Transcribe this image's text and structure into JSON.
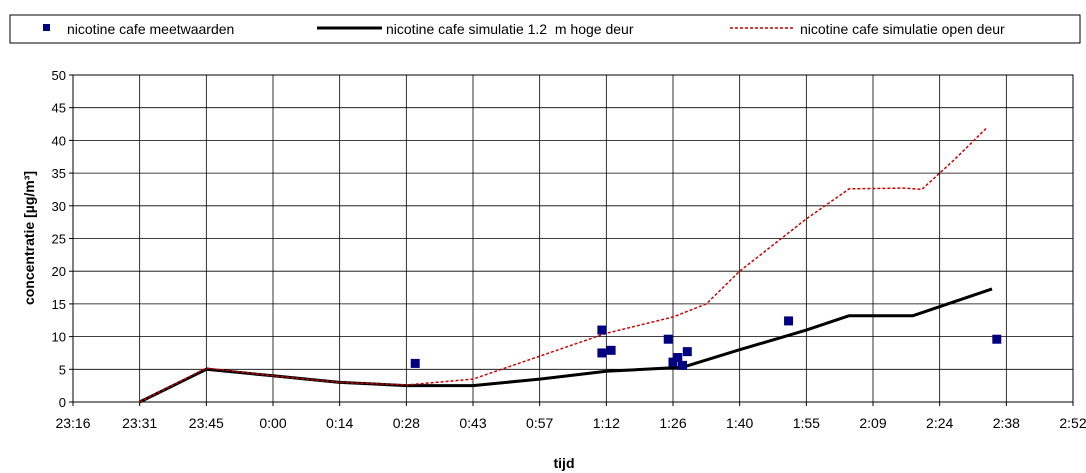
{
  "chart_data": {
    "type": "line",
    "xlabel": "tijd",
    "ylabel": "concentratie [µg/m³]",
    "ylim": [
      0,
      50
    ],
    "yticks": [
      0,
      5,
      10,
      15,
      20,
      25,
      30,
      35,
      40,
      45,
      50
    ],
    "x_tick_labels": [
      "23:16",
      "23:31",
      "23:45",
      "0:00",
      "0:14",
      "0:28",
      "0:43",
      "0:57",
      "1:12",
      "1:26",
      "1:40",
      "1:55",
      "2:09",
      "2:24",
      "2:38",
      "2:52"
    ],
    "grid": true,
    "legend_position": "top",
    "series": [
      {
        "name": "nicotine cafe meetwaarden",
        "kind": "scatter",
        "color": "#000080",
        "x": [
          "0:30",
          "1:11",
          "1:11",
          "1:13",
          "1:25",
          "1:26",
          "1:27",
          "1:28",
          "1:29",
          "1:51",
          "2:36"
        ],
        "y": [
          5.9,
          7.5,
          11.0,
          7.9,
          9.6,
          6.1,
          6.8,
          5.6,
          7.7,
          12.4,
          9.6
        ]
      },
      {
        "name": "nicotine cafe simulatie 1.2  m hoge deur",
        "kind": "line",
        "color": "#000000",
        "x": [
          "23:31",
          "23:45",
          "0:00",
          "0:14",
          "0:28",
          "0:43",
          "0:57",
          "1:12",
          "1:28",
          "1:40",
          "1:55",
          "2:04",
          "2:18",
          "2:35"
        ],
        "y": [
          0,
          5,
          4,
          3,
          2.5,
          2.5,
          3.5,
          4.7,
          5.3,
          8.0,
          11.0,
          13.2,
          13.2,
          17.3
        ]
      },
      {
        "name": "nicotine cafe simulatie open deur",
        "kind": "line",
        "color": "#cc0000",
        "x": [
          "23:31",
          "23:45",
          "0:00",
          "0:14",
          "0:28",
          "0:43",
          "0:57",
          "1:12",
          "1:26",
          "1:33",
          "1:40",
          "1:55",
          "2:04",
          "2:16",
          "2:20",
          "2:27",
          "2:34"
        ],
        "y": [
          0,
          5.2,
          4,
          3,
          2.6,
          3.5,
          7,
          10.5,
          13,
          15,
          20,
          28,
          32.6,
          32.7,
          32.5,
          37,
          42
        ]
      }
    ]
  }
}
